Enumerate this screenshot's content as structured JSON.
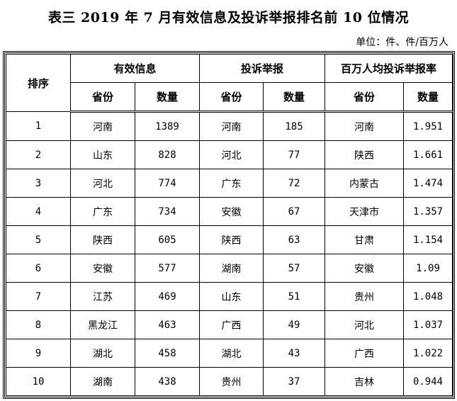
{
  "title": "表三  2019 年 7 月有效信息及投诉举报排名前 10 位情况",
  "unit": "单位：件、件/百万人",
  "headers": {
    "rank": "排序",
    "group1": "有效信息",
    "group2": "投诉举报",
    "group3": "百万人均投诉举报率",
    "province": "省份",
    "count": "数量"
  },
  "rows": [
    [
      "1",
      "河南",
      "1389",
      "河南",
      "185",
      "河南",
      "1.951"
    ],
    [
      "2",
      "山东",
      "828",
      "河北",
      "77",
      "陕西",
      "1.661"
    ],
    [
      "3",
      "河北",
      "774",
      "广东",
      "72",
      "内蒙古",
      "1.474"
    ],
    [
      "4",
      "广东",
      "734",
      "安徽",
      "67",
      "天津市",
      "1.357"
    ],
    [
      "5",
      "陕西",
      "605",
      "陕西",
      "63",
      "甘肃",
      "1.154"
    ],
    [
      "6",
      "安徽",
      "577",
      "湖南",
      "57",
      "安徽",
      "1.09"
    ],
    [
      "7",
      "江苏",
      "469",
      "山东",
      "51",
      "贵州",
      "1.048"
    ],
    [
      "8",
      "黑龙江",
      "463",
      "广西",
      "49",
      "河北",
      "1.037"
    ],
    [
      "9",
      "湖北",
      "458",
      "湖北",
      "43",
      "广西",
      "1.022"
    ],
    [
      "10",
      "湖南",
      "438",
      "贵州",
      "37",
      "吉林",
      "0.944"
    ]
  ]
}
